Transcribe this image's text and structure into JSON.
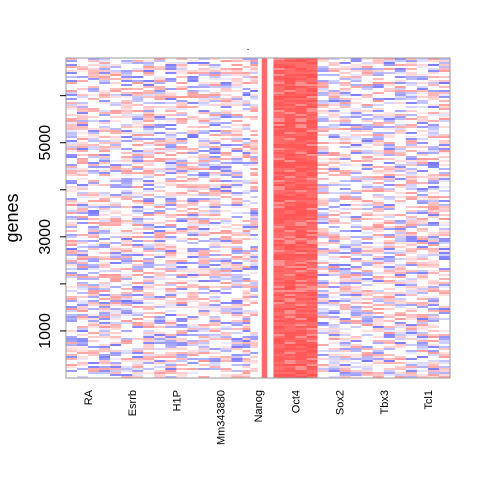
{
  "chart_data": {
    "type": "heatmap",
    "title": ".",
    "xlabel": "",
    "ylabel": "genes",
    "columns": [
      "RA",
      "Esrrb",
      "H1P",
      "Mm343880",
      "Nanog",
      "Oct4",
      "Sox2",
      "Tbx3",
      "Tcl1"
    ],
    "column_widths": [
      1.0,
      1.0,
      1.0,
      1.0,
      0.7,
      1.0,
      1.0,
      1.0,
      1.0
    ],
    "ylim": [
      0,
      6800
    ],
    "yticks": [
      1000,
      2000,
      3000,
      4000,
      5000,
      6000
    ],
    "ytick_labels": [
      "1000",
      "",
      "3000",
      "",
      "5000",
      ""
    ],
    "strong_columns": [
      "Oct4"
    ],
    "colors": {
      "low": "#0000ff",
      "mid": "#ffffff",
      "high": "#ff0000",
      "strong": "#ff6b6b",
      "frame": "#999999"
    }
  }
}
